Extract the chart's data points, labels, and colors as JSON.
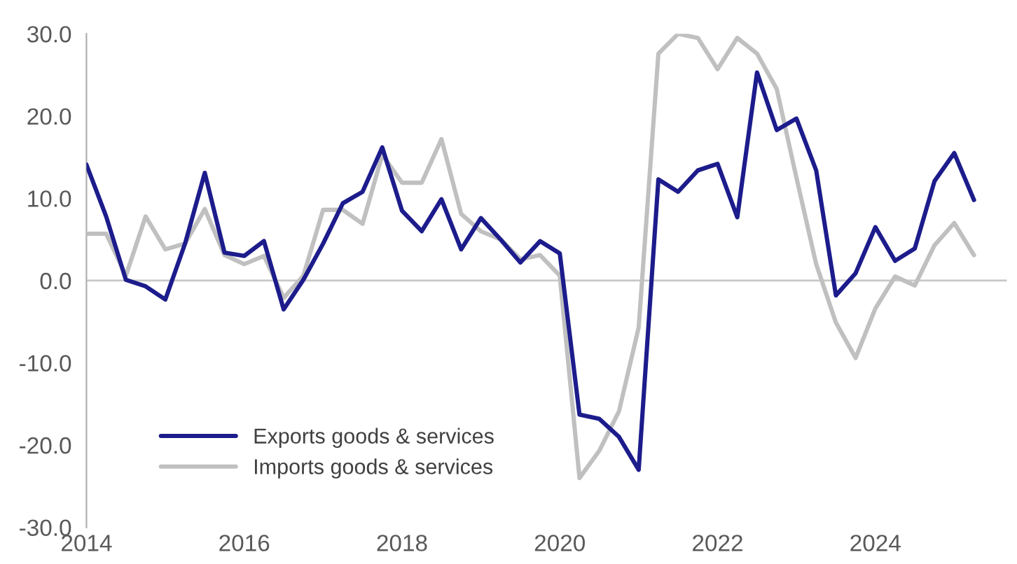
{
  "chart_data": {
    "type": "line",
    "x": [
      "2014-01",
      "2014-04",
      "2014-07",
      "2014-10",
      "2015-01",
      "2015-04",
      "2015-07",
      "2015-10",
      "2016-01",
      "2016-04",
      "2016-07",
      "2016-10",
      "2017-01",
      "2017-04",
      "2017-07",
      "2017-10",
      "2018-01",
      "2018-04",
      "2018-07",
      "2018-10",
      "2019-01",
      "2019-04",
      "2019-07",
      "2019-10",
      "2020-01",
      "2020-04",
      "2020-07",
      "2020-10",
      "2021-01",
      "2021-04",
      "2021-07",
      "2021-10",
      "2022-01",
      "2022-04",
      "2022-07",
      "2022-10",
      "2023-01",
      "2023-04",
      "2023-07",
      "2023-10",
      "2024-01",
      "2024-04",
      "2024-07",
      "2024-10",
      "2025-01",
      "2025-04"
    ],
    "series": [
      {
        "name": "Exports goods & services",
        "color": "#1c1c8c",
        "values": [
          14.1,
          7.8,
          0.1,
          -0.7,
          -2.3,
          4.5,
          13.1,
          3.4,
          3.0,
          4.8,
          -3.5,
          0.1,
          4.5,
          9.4,
          10.8,
          16.2,
          8.5,
          6.0,
          9.9,
          3.8,
          7.6,
          5.0,
          2.2,
          4.8,
          3.3,
          -16.3,
          -16.8,
          -19.0,
          -23.0,
          12.3,
          10.8,
          13.4,
          14.2,
          7.7,
          25.3,
          18.3,
          19.7,
          13.4,
          -1.8,
          0.9,
          6.5,
          2.4,
          3.9,
          12.1,
          15.5,
          9.8
        ]
      },
      {
        "name": "Imports goods & services",
        "color": "#c0c0c0",
        "values": [
          5.7,
          5.7,
          0.6,
          7.8,
          3.8,
          4.5,
          8.7,
          3.1,
          2.0,
          3.0,
          -2.1,
          0.6,
          8.6,
          8.6,
          6.9,
          15.3,
          11.9,
          11.9,
          17.2,
          8.1,
          6.0,
          5.0,
          2.6,
          3.1,
          0.6,
          -24.0,
          -20.7,
          -15.9,
          -5.7,
          27.6,
          30.0,
          29.5,
          25.7,
          29.5,
          27.6,
          23.3,
          12.5,
          2.0,
          -5.1,
          -9.4,
          -3.4,
          0.5,
          -0.6,
          4.3,
          7.0,
          3.1
        ]
      }
    ],
    "xlim": [
      "2014",
      "2025-09"
    ],
    "xticks": [
      {
        "value": "2014",
        "label": "2014"
      },
      {
        "value": "2016",
        "label": "2016"
      },
      {
        "value": "2018",
        "label": "2018"
      },
      {
        "value": "2020",
        "label": "2020"
      },
      {
        "value": "2022",
        "label": "2022"
      },
      {
        "value": "2024",
        "label": "2024"
      }
    ],
    "ylim": [
      -30,
      30
    ],
    "yticks": [
      {
        "value": -30,
        "label": "-30.0"
      },
      {
        "value": -20,
        "label": "-20.0"
      },
      {
        "value": -10,
        "label": "-10.0"
      },
      {
        "value": 0,
        "label": "0.0"
      },
      {
        "value": 10,
        "label": "10.0"
      },
      {
        "value": 20,
        "label": "20.0"
      },
      {
        "value": 30,
        "label": "30.0"
      }
    ],
    "ref_lines": [
      {
        "axis": "y",
        "value": 0,
        "color": "#c8c8c8"
      }
    ],
    "legend": "bottom left",
    "grid": false,
    "line_style": "solid",
    "marker": "none"
  }
}
